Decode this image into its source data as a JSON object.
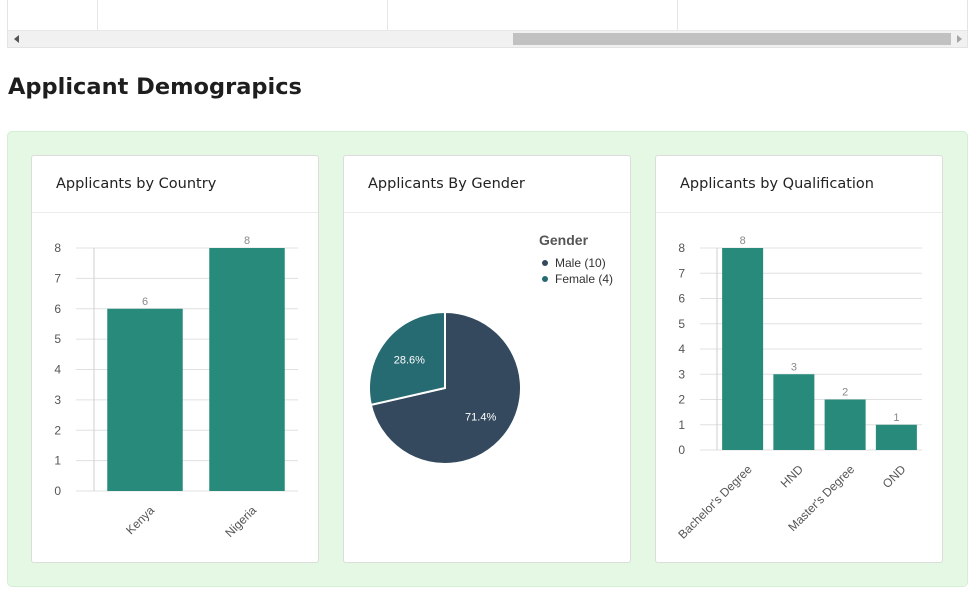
{
  "section": {
    "title": "Applicant Demograpics"
  },
  "colors": {
    "teal": "#278a7b",
    "panel_bg": "#e4f8e4",
    "male": "#34495e",
    "female": "#266a72",
    "grid": "#e0e0e0"
  },
  "cards": [
    {
      "title": "Applicants by Country"
    },
    {
      "title": "Applicants By Gender"
    },
    {
      "title": "Applicants by Qualification"
    }
  ],
  "chart_data": [
    {
      "type": "bar",
      "title": "Applicants by Country",
      "categories": [
        "Kenya",
        "Nigeria"
      ],
      "values": [
        6,
        8
      ],
      "data_labels": [
        "6",
        "8"
      ],
      "ylim": [
        0,
        8
      ],
      "yticks": [
        0,
        1,
        2,
        3,
        4,
        5,
        6,
        7,
        8
      ],
      "grid": true,
      "color": "#278a7b"
    },
    {
      "type": "pie",
      "title": "Applicants By Gender",
      "legend_title": "Gender",
      "legend_position": "top-right",
      "slices": [
        {
          "label": "Male (10)",
          "value": 10,
          "percent_label": "71.4%",
          "color": "#34495e"
        },
        {
          "label": "Female (4)",
          "value": 4,
          "percent_label": "28.6%",
          "color": "#266a72"
        }
      ]
    },
    {
      "type": "bar",
      "title": "Applicants by Qualification",
      "categories": [
        "Bachelor's Degree",
        "HND",
        "Master's Degree",
        "OND"
      ],
      "values": [
        8,
        3,
        2,
        1
      ],
      "data_labels": [
        "8",
        "3",
        "2",
        "1"
      ],
      "ylim": [
        0,
        8
      ],
      "yticks": [
        0,
        1,
        2,
        3,
        4,
        5,
        6,
        7,
        8
      ],
      "grid": true,
      "color": "#278a7b"
    }
  ]
}
